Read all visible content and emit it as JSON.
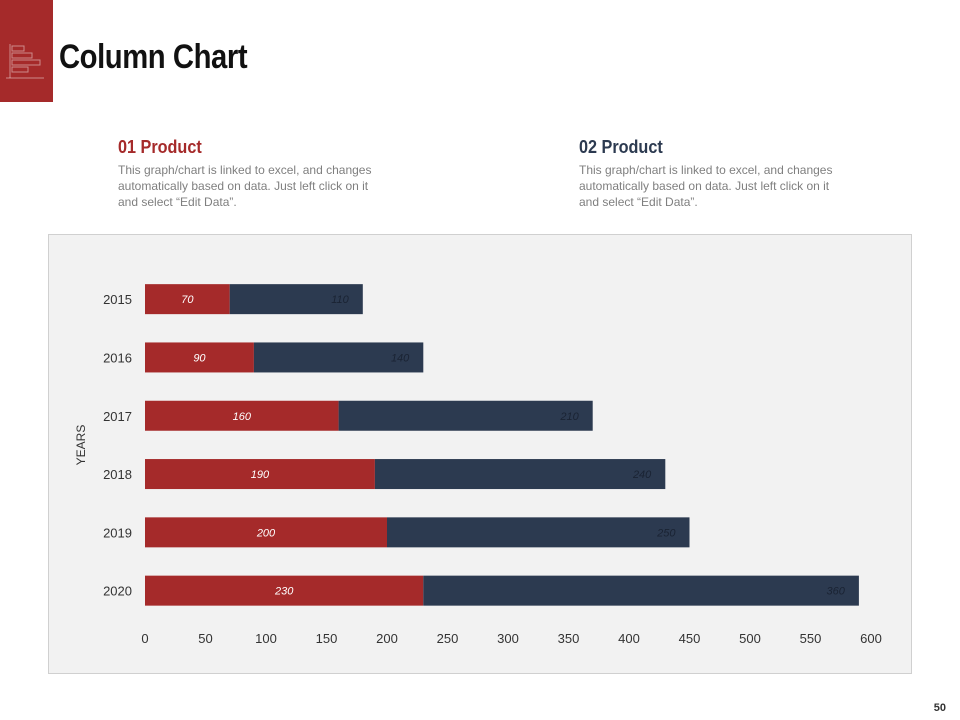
{
  "page": {
    "title": "Column Chart",
    "page_number": "50"
  },
  "products": [
    {
      "heading": "01 Product",
      "description": "This graph/chart is linked to excel, and changes automatically based on data. Just left click on it and select “Edit Data”."
    },
    {
      "heading": "02 Product",
      "description": "This graph/chart is linked to excel, and changes automatically based on data. Just left click on it and select “Edit Data”."
    }
  ],
  "colors": {
    "accent": "#a52a2a",
    "series1": "#a52a2a",
    "series2": "#2c3a50",
    "panel": "#f2f2f2"
  },
  "icons": {
    "logo": "chart-logo-icon"
  },
  "chart_data": {
    "type": "bar",
    "orientation": "horizontal",
    "stacked": true,
    "categories": [
      "2015",
      "2016",
      "2017",
      "2018",
      "2019",
      "2020"
    ],
    "series": [
      {
        "values": [
          70,
          90,
          160,
          190,
          200,
          230
        ],
        "color": "#a52a2a"
      },
      {
        "values": [
          110,
          140,
          210,
          240,
          250,
          360
        ],
        "color": "#2c3a50"
      }
    ],
    "xlim": [
      0,
      600
    ],
    "xticks": [
      0,
      50,
      100,
      150,
      200,
      250,
      300,
      350,
      400,
      450,
      500,
      550,
      600
    ],
    "xlabel": "",
    "ylabel": "YEARS",
    "grid": false,
    "data_labels": true
  }
}
